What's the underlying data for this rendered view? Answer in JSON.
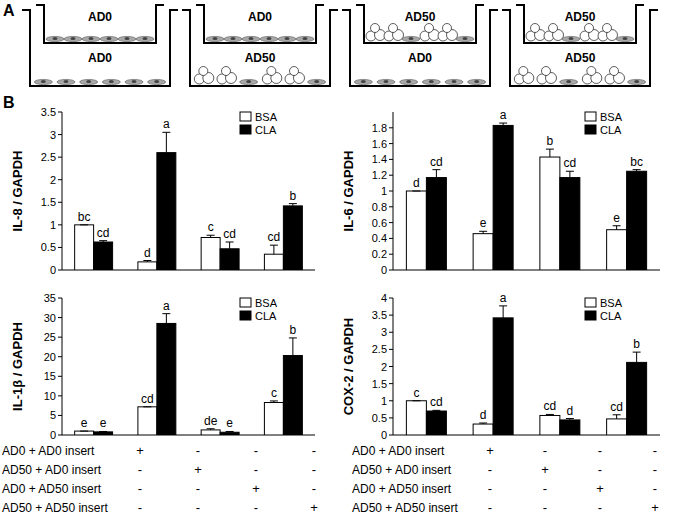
{
  "figure": {
    "panels": [
      "A",
      "B"
    ],
    "wells": [
      {
        "insert": "AD0",
        "bottom": "AD0"
      },
      {
        "insert": "AD0",
        "bottom": "AD50"
      },
      {
        "insert": "AD50",
        "bottom": "AD0"
      },
      {
        "insert": "AD50",
        "bottom": "AD50"
      }
    ],
    "conditions": {
      "labels": [
        "AD0 + AD0 insert",
        "AD50 + AD0 insert",
        "AD0 + AD50 insert",
        "AD50 + AD50 insert"
      ],
      "signs": [
        [
          "+",
          "-",
          "-",
          "-"
        ],
        [
          "-",
          "+",
          "-",
          "-"
        ],
        [
          "-",
          "-",
          "+",
          "-"
        ],
        [
          "-",
          "-",
          "-",
          "+"
        ]
      ]
    }
  },
  "chart_data": [
    {
      "type": "bar",
      "y_label": "IL-8 / GAPDH",
      "categories": [
        null,
        null,
        null,
        null
      ],
      "series": [
        {
          "name": "BSA",
          "color": "#ffffff",
          "values": [
            1.0,
            0.18,
            0.72,
            0.35
          ],
          "errors": [
            0,
            0.03,
            0.05,
            0.2
          ],
          "letters": [
            "bc",
            "d",
            "c",
            "cd"
          ]
        },
        {
          "name": "CLA",
          "color": "#000000",
          "values": [
            0.62,
            2.6,
            0.47,
            1.42
          ],
          "errors": [
            0.03,
            0.45,
            0.15,
            0.05
          ],
          "letters": [
            "cd",
            "a",
            "cd",
            "b"
          ]
        }
      ],
      "ylim": [
        0,
        3.5
      ],
      "yticks": [
        0,
        0.5,
        1,
        1.5,
        2,
        2.5,
        3,
        3.5
      ],
      "grid": false,
      "legend": "upper right",
      "tick_labels": "y"
    },
    {
      "type": "bar",
      "y_label": "IL-6 / GAPDH",
      "categories": [
        null,
        null,
        null,
        null
      ],
      "series": [
        {
          "name": "BSA",
          "color": "#ffffff",
          "values": [
            1.0,
            0.46,
            1.43,
            0.51
          ],
          "errors": [
            0,
            0.03,
            0.1,
            0.05
          ],
          "letters": [
            "d",
            "e",
            "b",
            "e"
          ]
        },
        {
          "name": "CLA",
          "color": "#000000",
          "values": [
            1.17,
            1.83,
            1.17,
            1.25
          ],
          "errors": [
            0.1,
            0.03,
            0.08,
            0.02
          ],
          "letters": [
            "cd",
            "a",
            "cd",
            "bc"
          ]
        }
      ],
      "ylim": [
        0,
        2
      ],
      "yticks": [
        0,
        0.2,
        0.4,
        0.6,
        0.8,
        1,
        1.2,
        1.4,
        1.6,
        1.8
      ],
      "grid": false,
      "legend": "upper right",
      "tick_labels": "y"
    },
    {
      "type": "bar",
      "y_label": "IL-1β / GAPDH",
      "categories": [
        null,
        null,
        null,
        null
      ],
      "series": [
        {
          "name": "BSA",
          "color": "#ffffff",
          "values": [
            1.0,
            7.2,
            1.3,
            8.3
          ],
          "errors": [
            0,
            0,
            0.3,
            0.4
          ],
          "letters": [
            "e",
            "cd",
            "de",
            "c"
          ]
        },
        {
          "name": "CLA",
          "color": "#000000",
          "values": [
            0.8,
            28.5,
            0.7,
            20.3
          ],
          "errors": [
            0.1,
            2.5,
            0.2,
            4.5
          ],
          "letters": [
            "e",
            "a",
            "e",
            "b"
          ]
        }
      ],
      "ylim": [
        0,
        35
      ],
      "yticks": [
        0,
        5,
        10,
        15,
        20,
        25,
        30,
        35
      ],
      "grid": false,
      "legend": "upper right",
      "tick_labels": "y"
    },
    {
      "type": "bar",
      "y_label": "COX-2 / GAPDH",
      "categories": [
        null,
        null,
        null,
        null
      ],
      "series": [
        {
          "name": "BSA",
          "color": "#ffffff",
          "values": [
            1.0,
            0.32,
            0.57,
            0.47
          ],
          "errors": [
            0,
            0.03,
            0.03,
            0.12
          ],
          "letters": [
            "c",
            "d",
            "cd",
            "cd"
          ]
        },
        {
          "name": "CLA",
          "color": "#000000",
          "values": [
            0.7,
            3.42,
            0.44,
            2.12
          ],
          "errors": [
            0.02,
            0.35,
            0.04,
            0.3
          ],
          "letters": [
            "cd",
            "a",
            "d",
            "b"
          ]
        }
      ],
      "ylim": [
        0,
        4
      ],
      "yticks": [
        0,
        0.5,
        1,
        1.5,
        2,
        2.5,
        3,
        3.5,
        4
      ],
      "grid": false,
      "legend": "upper right",
      "tick_labels": "y"
    }
  ]
}
